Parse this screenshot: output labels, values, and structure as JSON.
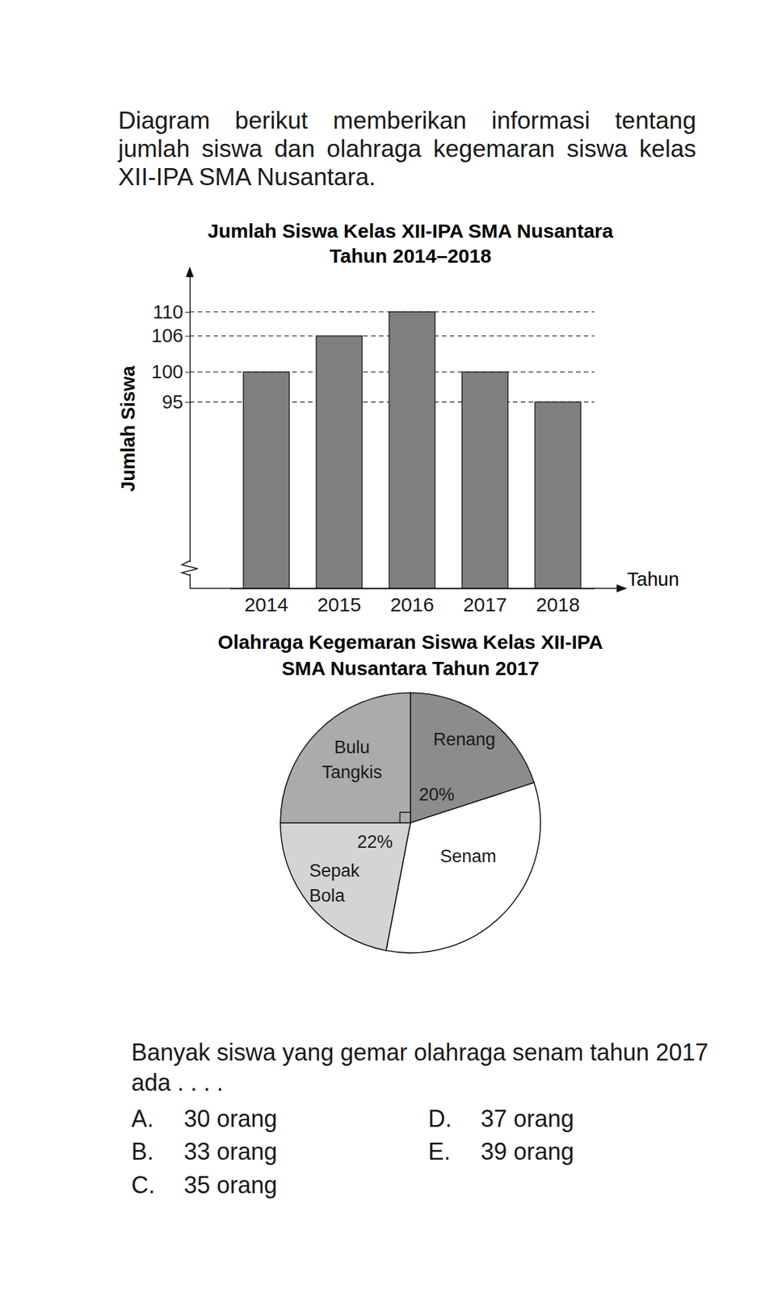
{
  "intro": "Diagram berikut memberikan informasi tentang jumlah siswa dan olahraga kegemaran siswa kelas XII-IPA SMA Nusantara.",
  "chart_data": [
    {
      "type": "bar",
      "title": "Jumlah Siswa Kelas XII-IPA SMA Nusantara\nTahun 2014–2018",
      "xlabel": "Tahun",
      "ylabel": "Jumlah Siswa",
      "categories": [
        "2014",
        "2015",
        "2016",
        "2017",
        "2018"
      ],
      "values": [
        100,
        106,
        110,
        100,
        95
      ],
      "color": "#7f7f7f",
      "ylim": [
        64,
        116
      ],
      "yticks": [
        95,
        100,
        106,
        110
      ],
      "grid": true
    },
    {
      "type": "pie",
      "title": "Olahraga Kegemaran Siswa Kelas XII-IPA\nSMA Nusantara Tahun 2017",
      "categories": [
        "Renang",
        "Senam",
        "Sepak Bola",
        "Bulu Tangkis"
      ],
      "values": [
        20,
        33,
        22,
        25
      ],
      "value_labels": [
        "20%",
        null,
        "22%",
        null
      ],
      "colors": [
        "#8c8c8c",
        "#ffffff",
        "#d4d4d4",
        "#ababab"
      ]
    }
  ],
  "question": {
    "text": "Banyak siswa yang gemar olahraga senam tahun 2017 ada . . . .",
    "options": [
      {
        "letter": "A.",
        "text": "30 orang"
      },
      {
        "letter": "B.",
        "text": "33 orang"
      },
      {
        "letter": "C.",
        "text": "35 orang"
      },
      {
        "letter": "D.",
        "text": "37 orang"
      },
      {
        "letter": "E.",
        "text": "39 orang"
      }
    ]
  }
}
